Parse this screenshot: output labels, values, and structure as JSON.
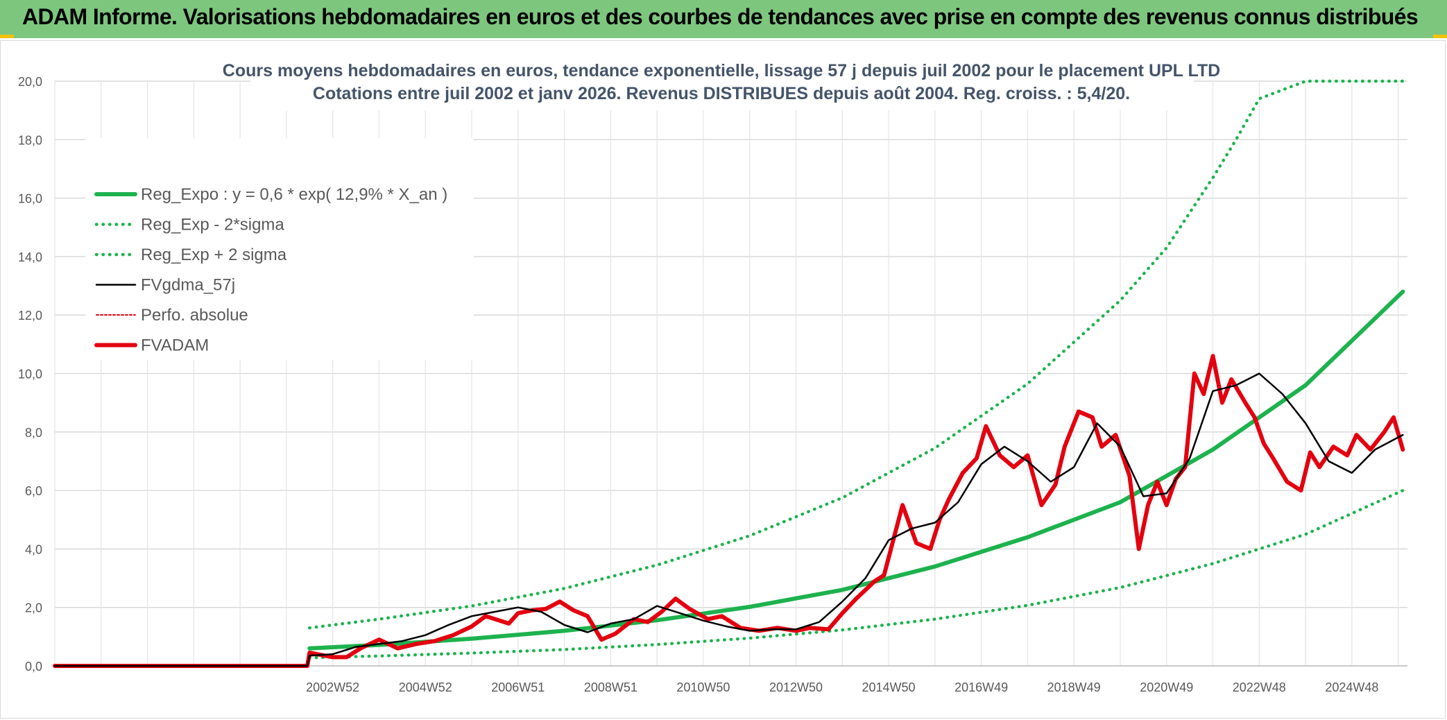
{
  "banner": {
    "title": "ADAM Informe. Valorisations hebdomadaires en euros et des courbes de tendances avec prise en compte des revenus connus distribués",
    "background_color": "#7dc67e",
    "accent_color": "#f2c200"
  },
  "chart_data": {
    "type": "line",
    "title_lines": [
      "Cours moyens hebdomadaires en euros, tendance exponentielle, lissage 57 j depuis juil 2002 pour le placement UPL LTD",
      "Cotations entre juil 2002 et janv 2026. Revenus DISTRIBUES depuis août 2004. Reg. croiss. : 5,4/20."
    ],
    "xlabel": "",
    "ylabel": "",
    "ylim": [
      0,
      20
    ],
    "yticks": [
      "0,0",
      "2,0",
      "4,0",
      "6,0",
      "8,0",
      "10,0",
      "12,0",
      "14,0",
      "16,0",
      "18,0",
      "20,0"
    ],
    "xlim": [
      1997.0,
      2026.2
    ],
    "xticks": [
      {
        "label": "2002W52",
        "x": 2003.0
      },
      {
        "label": "2004W52",
        "x": 2005.0
      },
      {
        "label": "2006W51",
        "x": 2007.0
      },
      {
        "label": "2008W51",
        "x": 2009.0
      },
      {
        "label": "2010W50",
        "x": 2011.0
      },
      {
        "label": "2012W50",
        "x": 2013.0
      },
      {
        "label": "2014W50",
        "x": 2015.0
      },
      {
        "label": "2016W49",
        "x": 2017.0
      },
      {
        "label": "2018W49",
        "x": 2019.0
      },
      {
        "label": "2020W49",
        "x": 2021.0
      },
      {
        "label": "2022W48",
        "x": 2023.0
      },
      {
        "label": "2024W48",
        "x": 2025.0
      }
    ],
    "grid": true,
    "legend_position": "top-left",
    "series": [
      {
        "key": "reg_expo",
        "name": "Reg_Expo : y = 0,6 * exp( 12,9% *  X_an )",
        "color": "#1db24e",
        "style": "solid-thick",
        "x": [
          2002.5,
          2004,
          2006,
          2008,
          2010,
          2012,
          2014,
          2016,
          2018,
          2020,
          2022,
          2024,
          2026.1
        ],
        "y": [
          0.6,
          0.72,
          0.93,
          1.2,
          1.56,
          2.02,
          2.6,
          3.4,
          4.4,
          5.6,
          7.4,
          9.6,
          12.8
        ]
      },
      {
        "key": "reg_minus",
        "name": "Reg_Exp - 2*sigma",
        "color": "#1db24e",
        "style": "dotted",
        "x": [
          2002.5,
          2004,
          2006,
          2008,
          2010,
          2012,
          2014,
          2016,
          2018,
          2020,
          2022,
          2024,
          2026.1
        ],
        "y": [
          0.28,
          0.34,
          0.44,
          0.56,
          0.73,
          0.95,
          1.23,
          1.6,
          2.07,
          2.68,
          3.5,
          4.5,
          6.0
        ]
      },
      {
        "key": "reg_plus",
        "name": "Reg_Exp + 2 sigma",
        "color": "#1db24e",
        "style": "dotted",
        "x": [
          2002.5,
          2004,
          2006,
          2008,
          2010,
          2012,
          2014,
          2016,
          2018,
          2020,
          2021,
          2022,
          2022.5,
          2023,
          2024,
          2026.1
        ],
        "y": [
          1.3,
          1.6,
          2.05,
          2.65,
          3.45,
          4.45,
          5.75,
          7.45,
          9.65,
          12.5,
          14.3,
          16.7,
          18.0,
          19.4,
          20.0,
          20.0
        ]
      },
      {
        "key": "fvgdma",
        "name": "FVgdma_57j",
        "color": "#000000",
        "style": "solid",
        "x": [
          1997.0,
          2002.45,
          2002.5,
          2003.0,
          2003.5,
          2004.0,
          2004.5,
          2005.0,
          2005.5,
          2006.0,
          2006.5,
          2007.0,
          2007.5,
          2008.0,
          2008.5,
          2009.0,
          2009.5,
          2010.0,
          2010.5,
          2011.0,
          2011.5,
          2012.0,
          2012.5,
          2013.0,
          2013.5,
          2014.0,
          2014.5,
          2015.0,
          2015.5,
          2016.0,
          2016.5,
          2017.0,
          2017.5,
          2018.0,
          2018.5,
          2019.0,
          2019.5,
          2020.0,
          2020.5,
          2021.0,
          2021.5,
          2022.0,
          2022.5,
          2023.0,
          2023.5,
          2024.0,
          2024.5,
          2025.0,
          2025.5,
          2026.1
        ],
        "y": [
          0.0,
          0.0,
          0.35,
          0.4,
          0.65,
          0.75,
          0.85,
          1.05,
          1.4,
          1.7,
          1.85,
          2.0,
          1.85,
          1.4,
          1.15,
          1.45,
          1.6,
          2.05,
          1.8,
          1.55,
          1.35,
          1.2,
          1.25,
          1.25,
          1.5,
          2.2,
          3.0,
          4.3,
          4.7,
          4.9,
          5.6,
          6.9,
          7.5,
          7.0,
          6.3,
          6.8,
          8.3,
          7.5,
          5.8,
          5.9,
          7.1,
          9.4,
          9.6,
          10.0,
          9.3,
          8.3,
          7.0,
          6.6,
          7.4,
          7.9
        ]
      },
      {
        "key": "perfo",
        "name": "Perfo. absolue",
        "color": "#e3000f",
        "style": "dotted-thin",
        "x": [
          1997.0,
          2002.45,
          2002.5,
          2003.0,
          2003.5,
          2004.0,
          2004.5,
          2005.0,
          2005.5,
          2006.0,
          2006.5,
          2007.0,
          2007.5,
          2008.0,
          2008.5,
          2009.0,
          2009.5,
          2010.0,
          2010.5,
          2011.0,
          2011.5,
          2012.0,
          2012.5,
          2013.0,
          2013.5,
          2014.0,
          2014.5,
          2015.0,
          2015.5,
          2016.0,
          2016.5,
          2017.0,
          2017.5,
          2018.0,
          2018.5,
          2019.0,
          2019.5,
          2020.0,
          2020.5,
          2021.0,
          2021.5,
          2022.0,
          2022.5,
          2023.0,
          2023.5,
          2024.0,
          2024.5,
          2025.0,
          2025.5,
          2026.1
        ],
        "y": [
          0.0,
          0.0,
          0.35,
          0.4,
          0.65,
          0.75,
          0.85,
          1.05,
          1.4,
          1.7,
          1.85,
          2.0,
          1.85,
          1.4,
          1.15,
          1.45,
          1.6,
          2.05,
          1.8,
          1.55,
          1.35,
          1.2,
          1.25,
          1.25,
          1.5,
          2.2,
          3.0,
          4.3,
          4.7,
          4.9,
          5.6,
          6.9,
          7.5,
          7.0,
          6.3,
          6.8,
          8.3,
          7.5,
          5.8,
          5.9,
          7.1,
          9.4,
          9.6,
          10.0,
          9.3,
          8.3,
          7.0,
          6.6,
          7.4,
          7.9
        ]
      },
      {
        "key": "fvadam",
        "name": "FVADAM",
        "color": "#e3000f",
        "style": "solid-thick",
        "x": [
          1997.0,
          2002.45,
          2002.5,
          2003.0,
          2003.3,
          2003.6,
          2004.0,
          2004.4,
          2004.8,
          2005.2,
          2005.6,
          2006.0,
          2006.3,
          2006.8,
          2007.0,
          2007.3,
          2007.6,
          2007.9,
          2008.2,
          2008.5,
          2008.8,
          2009.1,
          2009.5,
          2009.8,
          2010.1,
          2010.4,
          2010.7,
          2011.1,
          2011.4,
          2011.8,
          2012.2,
          2012.6,
          2013.0,
          2013.3,
          2013.7,
          2014.0,
          2014.3,
          2014.7,
          2014.9,
          2015.1,
          2015.3,
          2015.6,
          2015.9,
          2016.1,
          2016.3,
          2016.6,
          2016.9,
          2017.1,
          2017.4,
          2017.7,
          2018.0,
          2018.3,
          2018.6,
          2018.8,
          2019.1,
          2019.4,
          2019.6,
          2019.9,
          2020.2,
          2020.4,
          2020.6,
          2020.8,
          2021.0,
          2021.2,
          2021.4,
          2021.6,
          2021.8,
          2022.0,
          2022.2,
          2022.4,
          2022.7,
          2022.9,
          2023.1,
          2023.3,
          2023.6,
          2023.9,
          2024.1,
          2024.3,
          2024.6,
          2024.9,
          2025.1,
          2025.4,
          2025.7,
          2025.9,
          2026.1
        ],
        "y": [
          0.0,
          0.0,
          0.45,
          0.3,
          0.3,
          0.6,
          0.9,
          0.6,
          0.75,
          0.85,
          1.05,
          1.35,
          1.7,
          1.45,
          1.8,
          1.9,
          1.95,
          2.2,
          1.9,
          1.7,
          0.9,
          1.1,
          1.6,
          1.5,
          1.85,
          2.3,
          1.95,
          1.6,
          1.7,
          1.3,
          1.2,
          1.3,
          1.2,
          1.3,
          1.25,
          1.8,
          2.3,
          2.9,
          3.1,
          4.3,
          5.5,
          4.2,
          4.0,
          5.0,
          5.7,
          6.6,
          7.1,
          8.2,
          7.2,
          6.8,
          7.2,
          5.5,
          6.2,
          7.5,
          8.7,
          8.5,
          7.5,
          7.9,
          6.5,
          4.0,
          5.5,
          6.3,
          5.5,
          6.4,
          6.8,
          10.0,
          9.3,
          10.6,
          9.0,
          9.8,
          9.0,
          8.5,
          7.6,
          7.1,
          6.3,
          6.0,
          7.3,
          6.8,
          7.5,
          7.2,
          7.9,
          7.4,
          8.0,
          8.5,
          7.4
        ]
      }
    ]
  }
}
